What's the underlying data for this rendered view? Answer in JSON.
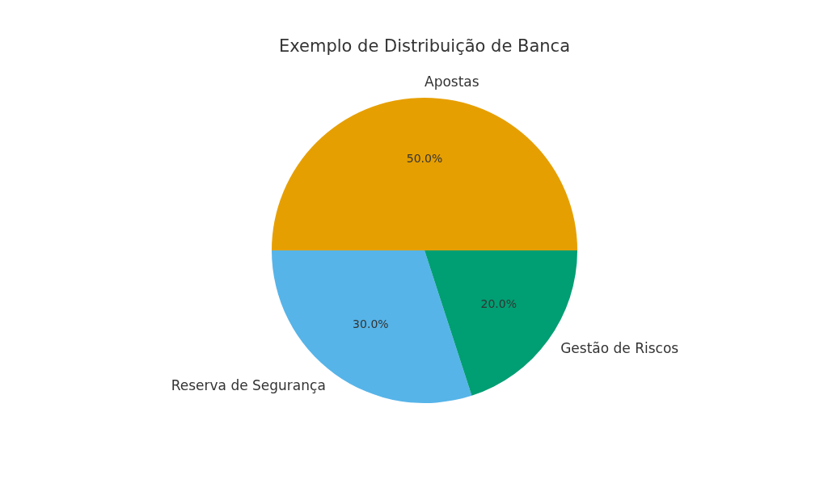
{
  "chart_data": {
    "type": "pie",
    "title": "Exemplo de Distribuição de Banca",
    "categories": [
      "Apostas",
      "Reserva de Segurança",
      "Gestão de Riscos"
    ],
    "values": [
      50,
      30,
      20
    ],
    "colors": [
      "#e69f00",
      "#56b4e9",
      "#009e73"
    ],
    "value_labels": [
      "50.0%",
      "30.0%",
      "20.0%"
    ],
    "legend": false
  }
}
